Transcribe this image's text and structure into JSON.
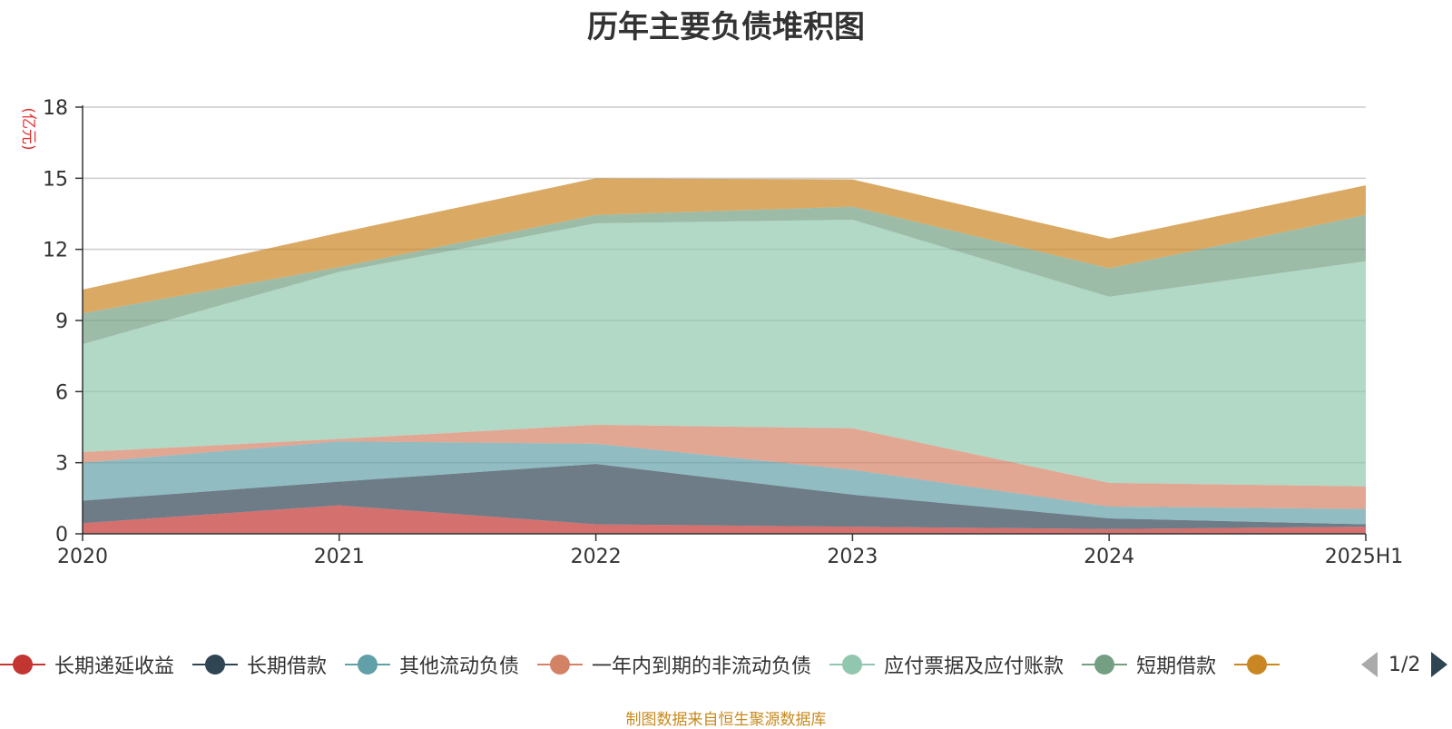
{
  "chart_data": {
    "type": "area",
    "stacked": true,
    "title": "历年主要负债堆积图",
    "ylabel": "(亿元)",
    "xlabel": "",
    "categories": [
      "2020",
      "2021",
      "2022",
      "2023",
      "2024",
      "2025H1"
    ],
    "ylim": [
      0,
      18
    ],
    "yticks": [
      0,
      3,
      6,
      9,
      12,
      15,
      18
    ],
    "grid": true,
    "legend_position": "bottom",
    "series": [
      {
        "name": "长期递延收益",
        "color": "#c23531",
        "values": [
          0.45,
          1.2,
          0.4,
          0.3,
          0.2,
          0.3
        ]
      },
      {
        "name": "长期借款",
        "color": "#2f4554",
        "values": [
          0.95,
          1.0,
          2.55,
          1.35,
          0.45,
          0.1
        ]
      },
      {
        "name": "其他流动负债",
        "color": "#61a0a8",
        "values": [
          1.6,
          1.7,
          0.85,
          1.05,
          0.5,
          0.65
        ]
      },
      {
        "name": "一年内到期的非流动负债",
        "color": "#d48265",
        "values": [
          0.45,
          0.1,
          0.8,
          1.75,
          1.0,
          0.95
        ]
      },
      {
        "name": "应付票据及应付账款",
        "color": "#91c7ae",
        "values": [
          4.55,
          7.05,
          8.5,
          8.8,
          7.85,
          9.5
        ]
      },
      {
        "name": "短期借款",
        "color": "#749f83",
        "values": [
          1.3,
          0.2,
          0.35,
          0.55,
          1.2,
          1.95
        ]
      },
      {
        "name": "",
        "color": "#ca8622",
        "values": [
          1.0,
          1.45,
          1.55,
          1.15,
          1.25,
          1.25
        ]
      }
    ]
  },
  "legend": {
    "page_indicator": "1/2"
  },
  "source_note": "制图数据来自恒生聚源数据库"
}
